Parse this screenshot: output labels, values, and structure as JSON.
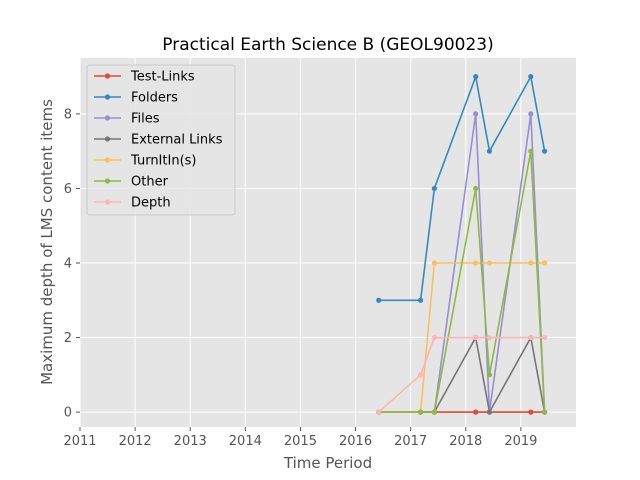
{
  "chart_data": {
    "type": "line",
    "title": "Practical Earth Science B (GEOL90023)",
    "xlabel": "Time Period",
    "ylabel": "Maximum depth of LMS content items",
    "xlim": [
      2011,
      2020
    ],
    "ylim": [
      -0.4,
      9.5
    ],
    "xticks": [
      "2011",
      "2012",
      "2013",
      "2014",
      "2015",
      "2016",
      "2017",
      "2018",
      "2019"
    ],
    "yticks": [
      "0",
      "2",
      "4",
      "6",
      "8"
    ],
    "grid": true,
    "legend_position": "upper-left",
    "series": [
      {
        "name": "Test-Links",
        "color": "#E24A33",
        "points": [
          [
            2016.42,
            0
          ],
          [
            2017.18,
            0
          ],
          [
            2017.43,
            0
          ],
          [
            2018.18,
            0
          ],
          [
            2018.43,
            0
          ],
          [
            2019.18,
            0
          ],
          [
            2019.43,
            0
          ]
        ]
      },
      {
        "name": "Folders",
        "color": "#348ABD",
        "points": [
          [
            2016.42,
            3
          ],
          [
            2017.18,
            3
          ],
          [
            2017.43,
            6
          ],
          [
            2018.18,
            9
          ],
          [
            2018.43,
            7
          ],
          [
            2019.18,
            9
          ],
          [
            2019.43,
            7
          ]
        ]
      },
      {
        "name": "Files",
        "color": "#988ED5",
        "points": [
          [
            2016.42,
            0
          ],
          [
            2017.18,
            0
          ],
          [
            2017.43,
            0
          ],
          [
            2018.18,
            8
          ],
          [
            2018.43,
            0
          ],
          [
            2019.18,
            8
          ],
          [
            2019.43,
            0
          ]
        ]
      },
      {
        "name": "External Links",
        "color": "#777777",
        "points": [
          [
            2016.42,
            0
          ],
          [
            2017.18,
            0
          ],
          [
            2017.43,
            0
          ],
          [
            2018.18,
            2
          ],
          [
            2018.43,
            0
          ],
          [
            2019.18,
            2
          ],
          [
            2019.43,
            0
          ]
        ]
      },
      {
        "name": "TurnItIn(s)",
        "color": "#FBC15E",
        "points": [
          [
            2016.42,
            0
          ],
          [
            2017.18,
            0
          ],
          [
            2017.43,
            4
          ],
          [
            2018.18,
            4
          ],
          [
            2018.43,
            4
          ],
          [
            2019.18,
            4
          ],
          [
            2019.43,
            4
          ]
        ]
      },
      {
        "name": "Other",
        "color": "#8EBA42",
        "points": [
          [
            2016.42,
            0
          ],
          [
            2017.18,
            0
          ],
          [
            2017.43,
            0
          ],
          [
            2018.18,
            6
          ],
          [
            2018.43,
            1
          ],
          [
            2019.18,
            7
          ],
          [
            2019.43,
            0
          ]
        ]
      },
      {
        "name": "Depth",
        "color": "#FFB5B8",
        "points": [
          [
            2016.42,
            0
          ],
          [
            2017.18,
            1
          ],
          [
            2017.43,
            2
          ],
          [
            2018.18,
            2
          ],
          [
            2018.43,
            2
          ],
          [
            2019.18,
            2
          ],
          [
            2019.43,
            2
          ]
        ]
      }
    ]
  }
}
